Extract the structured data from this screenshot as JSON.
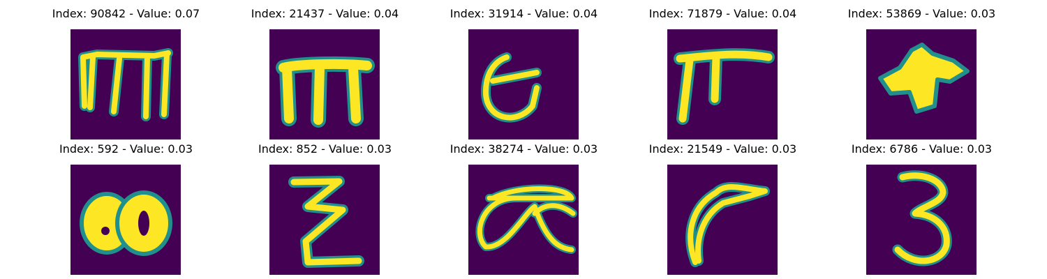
{
  "colors": {
    "background": "#440154",
    "stroke_mid": "#21908d",
    "stroke_high": "#fde725",
    "title_text": "#000000"
  },
  "panels": [
    {
      "title": "Index: 90842 - Value: 0.07",
      "glyph": "m"
    },
    {
      "title": "Index: 21437 - Value: 0.04",
      "glyph": "m-bold"
    },
    {
      "title": "Index: 31914 - Value: 0.04",
      "glyph": "loop-hook"
    },
    {
      "title": "Index: 71879 - Value: 0.04",
      "glyph": "pi-like"
    },
    {
      "title": "Index: 53869 - Value: 0.03",
      "glyph": "blob-star"
    },
    {
      "title": "Index: 592 - Value: 0.03",
      "glyph": "double-o"
    },
    {
      "title": "Index: 852 - Value: 0.03",
      "glyph": "zigzag"
    },
    {
      "title": "Index: 38274 - Value: 0.03",
      "glyph": "ae-loop"
    },
    {
      "title": "Index: 21549 - Value: 0.03",
      "glyph": "curved-hook"
    },
    {
      "title": "Index: 6786 - Value: 0.03",
      "glyph": "three"
    }
  ]
}
